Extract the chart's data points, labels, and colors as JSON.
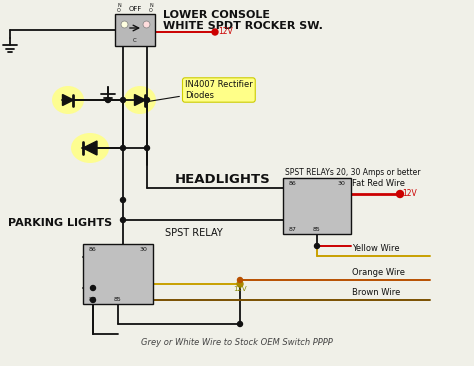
{
  "bg_color": "#f0f0e8",
  "lower_console_label1": "LOWER CONSOLE",
  "lower_console_label2": "WHITE SPDT ROCKER SW.",
  "headlights_label": "HEADLIGHTS",
  "parking_lights_label": "PARKING LIGHTS",
  "spst_relay_label": "SPST RELAY",
  "spst_relays_label": "SPST RELAYs 20, 30 Amps or better",
  "diodes_label": "IN4007 Rectifier\nDiodes",
  "fat_red_wire_label": "Fat Red Wire",
  "yellow_wire_label": "Yellow Wire",
  "orange_wire_label": "Orange Wire",
  "brown_wire_label": "Brown Wire",
  "footer_label": "Grey or White Wire to Stock OEM Switch PPPP",
  "12v_label": "12V",
  "color_black": "#111111",
  "color_red": "#cc0000",
  "color_yellow_wire": "#c8a000",
  "color_orange": "#b85000",
  "color_brown": "#7a5000",
  "color_relay_fill": "#c0c0c0",
  "color_diode_fill": "#ffff88",
  "color_switch_fill": "#b8b8b8",
  "lw_wire": 1.3,
  "lw_thick": 2.0
}
